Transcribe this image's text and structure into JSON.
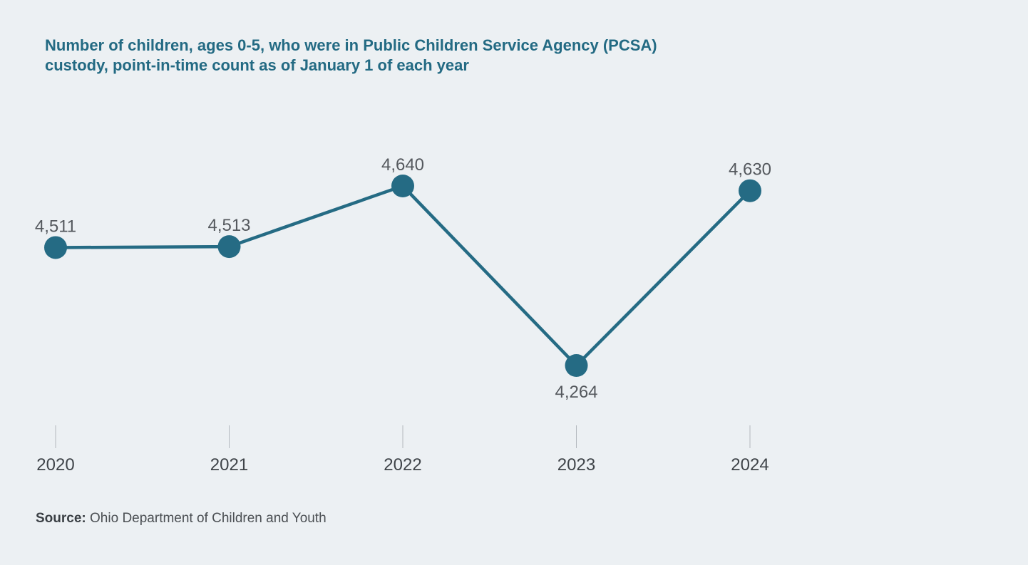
{
  "chart_data": {
    "type": "line",
    "title_lines": [
      "Number of children, ages 0-5, who were in Public Children Service Agency (PCSA)",
      "custody, point-in-time count as of January 1 of each year"
    ],
    "xlabel": "",
    "ylabel": "",
    "categories": [
      "2020",
      "2021",
      "2022",
      "2023",
      "2024"
    ],
    "series": [
      {
        "values": [
          4511,
          4513,
          4640,
          4264,
          4630
        ],
        "data_labels": [
          "4,511",
          "4,513",
          "4,640",
          "4,264",
          "4,630"
        ]
      }
    ],
    "grid": false,
    "legend": "none",
    "line_color": "#256b84",
    "marker_color": "#256b84"
  },
  "source": {
    "label": "Source:",
    "text": "Ohio Department of Children and Youth"
  }
}
